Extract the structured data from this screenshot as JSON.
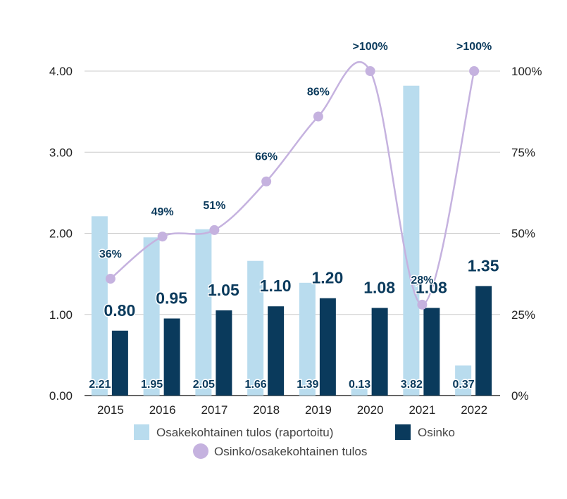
{
  "chart_data": {
    "type": "bar",
    "categories": [
      "2015",
      "2016",
      "2017",
      "2018",
      "2019",
      "2020",
      "2021",
      "2022"
    ],
    "series": [
      {
        "name": "Osakekohtainen tulos (raportoitu)",
        "type": "bar",
        "axis": "left",
        "color": "#b9dcee",
        "values": [
          2.21,
          1.95,
          2.05,
          1.66,
          1.39,
          0.13,
          3.82,
          0.37
        ],
        "labels": [
          "2.21",
          "1.95",
          "2.05",
          "1.66",
          "1.39",
          "0.13",
          "3.82",
          "0.37"
        ]
      },
      {
        "name": "Osinko",
        "type": "bar",
        "axis": "left",
        "color": "#0a3a5c",
        "values": [
          0.8,
          0.95,
          1.05,
          1.1,
          1.2,
          1.08,
          1.08,
          1.35
        ],
        "labels": [
          "0.80",
          "0.95",
          "1.05",
          "1.10",
          "1.20",
          "1.08",
          "1.08",
          "1.35"
        ]
      },
      {
        "name": "Osinko/osakekohtainen tulos",
        "type": "line",
        "axis": "right",
        "color": "#c5b2df",
        "values": [
          36,
          49,
          51,
          66,
          86,
          100,
          28,
          100
        ],
        "labels": [
          "36%",
          "49%",
          "51%",
          "66%",
          "86%",
          ">100%",
          "28%",
          ">100%"
        ]
      }
    ],
    "y_left": {
      "ylim": [
        0,
        4.0
      ],
      "ticks": [
        "0.00",
        "1.00",
        "2.00",
        "3.00",
        "4.00"
      ],
      "tick_values": [
        0,
        1,
        2,
        3,
        4
      ]
    },
    "y_right": {
      "ylim": [
        0,
        100
      ],
      "ticks": [
        "0%",
        "25%",
        "50%",
        "75%",
        "100%"
      ],
      "tick_values": [
        0,
        25,
        50,
        75,
        100
      ]
    },
    "grid": true,
    "legend_position": "bottom"
  },
  "legend": {
    "eps_label": "Osakekohtainen tulos (raportoitu)",
    "dividend_label": "Osinko",
    "payout_label": "Osinko/osakekohtainen tulos"
  }
}
